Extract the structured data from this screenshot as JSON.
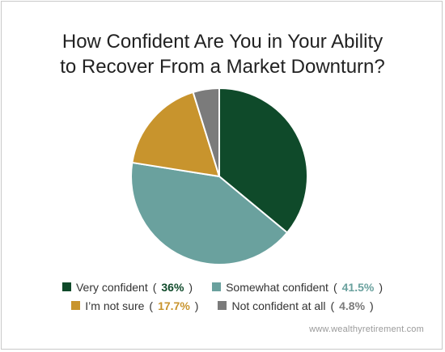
{
  "header": {
    "title_line_1": "How Confident Are You in Your Ability",
    "title_line_2": "to Recover From a Market Downturn?"
  },
  "chart_data": {
    "type": "pie",
    "title": "How Confident Are You in Your Ability to Recover From a Market Downturn?",
    "categories": [
      "Very confident",
      "Somewhat confident",
      "I’m not sure",
      "Not confident at all"
    ],
    "values": [
      36,
      41.5,
      17.7,
      4.8
    ],
    "value_labels": [
      "36%",
      "41.5%",
      "17.7%",
      "4.8%"
    ],
    "colors": [
      "#0f4a2a",
      "#6aa19e",
      "#c8942d",
      "#7b7b7b"
    ],
    "legend_placement": "bottom",
    "grid": false
  },
  "footer": {
    "source": "www.wealthyretirement.com"
  }
}
